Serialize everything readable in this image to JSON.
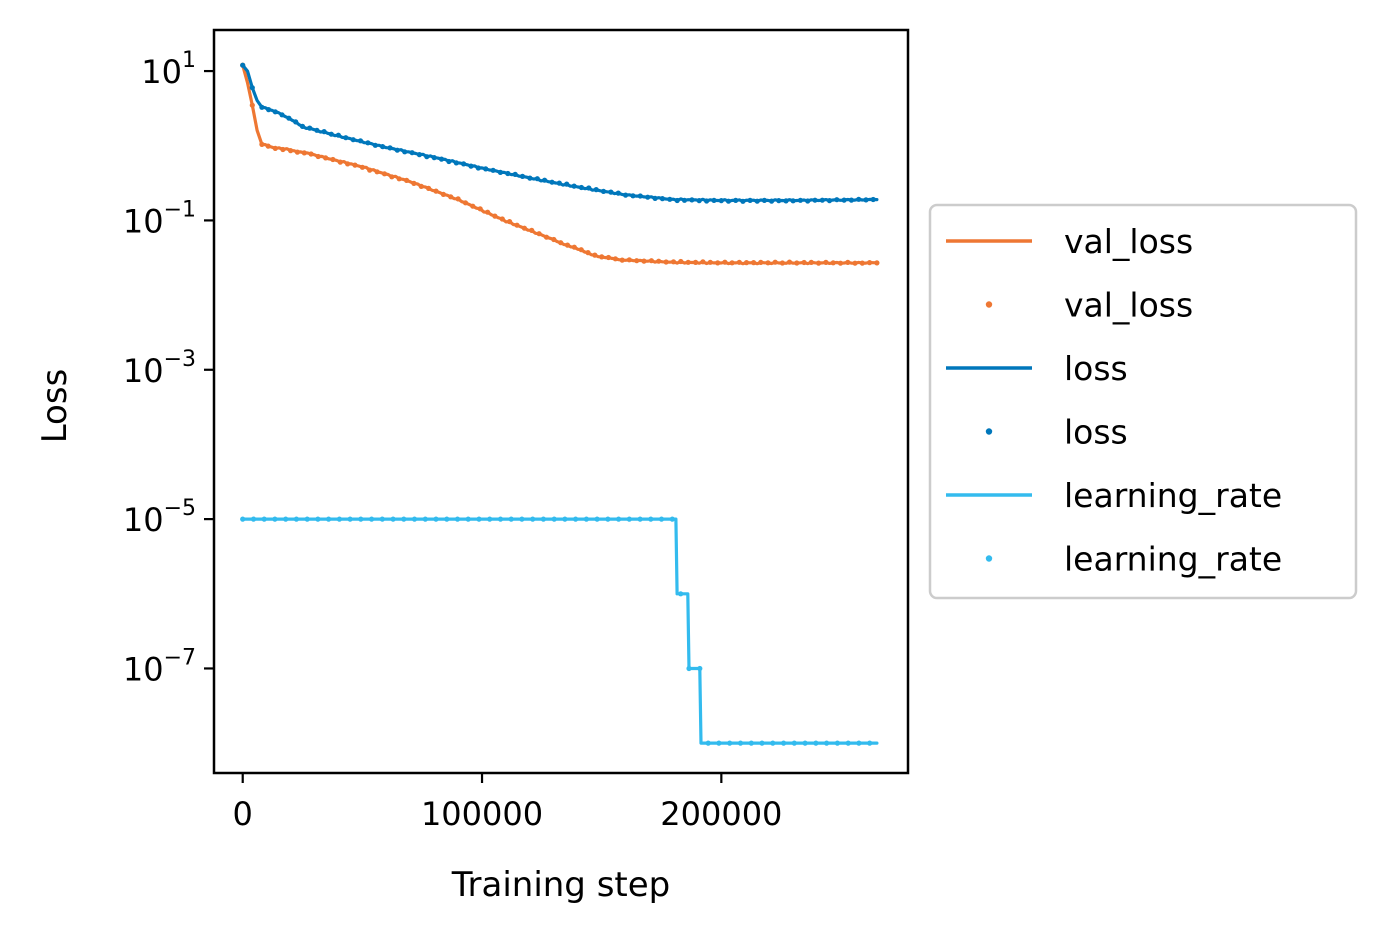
{
  "chart_data": {
    "type": "line",
    "xlabel": "Training step",
    "ylabel": "Loss",
    "xscale": "linear",
    "yscale": "log",
    "xlim": [
      -12000,
      278000
    ],
    "ylim_log10": [
      -8.4,
      1.55
    ],
    "xticks": [
      {
        "value": 0,
        "label": "0"
      },
      {
        "value": 100000,
        "label": "100000"
      },
      {
        "value": 200000,
        "label": "200000"
      }
    ],
    "yticks": [
      {
        "exp": 1,
        "base": "10",
        "sup": "1"
      },
      {
        "exp": -1,
        "base": "10",
        "sup": "−1"
      },
      {
        "exp": -3,
        "base": "10",
        "sup": "−3"
      },
      {
        "exp": -5,
        "base": "10",
        "sup": "−5"
      },
      {
        "exp": -7,
        "base": "10",
        "sup": "−7"
      }
    ],
    "grid": false,
    "legend_position": "outside-right",
    "series": [
      {
        "name": "val_loss",
        "color": "#ee7733",
        "points": [
          [
            0,
            12
          ],
          [
            2000,
            7
          ],
          [
            4000,
            3.5
          ],
          [
            6000,
            1.6
          ],
          [
            8000,
            1.05
          ],
          [
            12000,
            0.95
          ],
          [
            20000,
            0.88
          ],
          [
            30000,
            0.75
          ],
          [
            50000,
            0.52
          ],
          [
            70000,
            0.33
          ],
          [
            90000,
            0.19
          ],
          [
            110000,
            0.098
          ],
          [
            130000,
            0.055
          ],
          [
            140000,
            0.041
          ],
          [
            150000,
            0.032
          ],
          [
            160000,
            0.0295
          ],
          [
            180000,
            0.0275
          ],
          [
            200000,
            0.027
          ],
          [
            230000,
            0.027
          ],
          [
            265000,
            0.027
          ]
        ]
      },
      {
        "name": "loss",
        "color": "#0077bb",
        "points": [
          [
            0,
            12
          ],
          [
            2000,
            10
          ],
          [
            4000,
            6
          ],
          [
            6000,
            4
          ],
          [
            8000,
            3.3
          ],
          [
            15000,
            2.8
          ],
          [
            25000,
            1.8
          ],
          [
            40000,
            1.35
          ],
          [
            60000,
            0.95
          ],
          [
            80000,
            0.7
          ],
          [
            100000,
            0.5
          ],
          [
            120000,
            0.37
          ],
          [
            140000,
            0.28
          ],
          [
            160000,
            0.22
          ],
          [
            180000,
            0.19
          ],
          [
            200000,
            0.185
          ],
          [
            230000,
            0.185
          ],
          [
            265000,
            0.19
          ]
        ]
      },
      {
        "name": "learning_rate",
        "color": "#33bbee",
        "points": [
          [
            0,
            1e-05
          ],
          [
            181000,
            1e-05
          ],
          [
            181500,
            1e-06
          ],
          [
            186000,
            1e-06
          ],
          [
            186500,
            1e-07
          ],
          [
            191000,
            1e-07
          ],
          [
            191500,
            1e-08
          ],
          [
            265000,
            1e-08
          ]
        ]
      }
    ],
    "legend": [
      {
        "label": "val_loss",
        "kind": "line",
        "series": 0
      },
      {
        "label": "val_loss",
        "kind": "dot",
        "series": 0
      },
      {
        "label": "loss",
        "kind": "line",
        "series": 1
      },
      {
        "label": "loss",
        "kind": "dot",
        "series": 1
      },
      {
        "label": "learning_rate",
        "kind": "line",
        "series": 2
      },
      {
        "label": "learning_rate",
        "kind": "dot",
        "series": 2
      }
    ]
  }
}
